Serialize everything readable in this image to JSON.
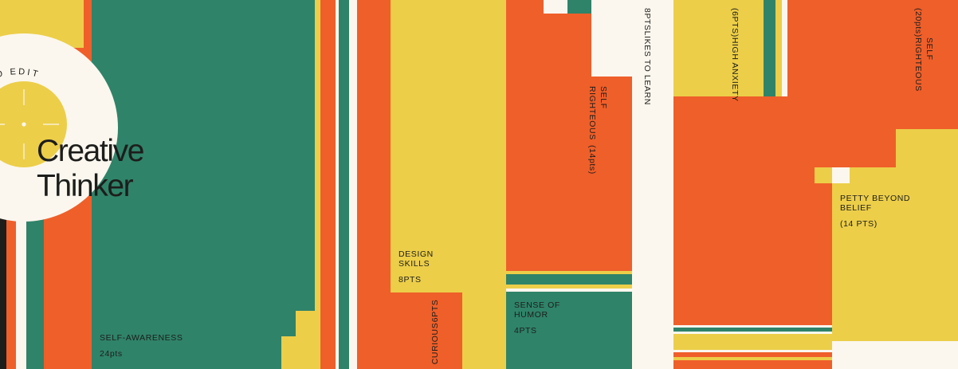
{
  "card": {
    "title_line1": "Creative",
    "title_line2": "Thinker",
    "dial_text": "TO EDIT"
  },
  "traits": [
    {
      "name": "SELF-AWARENESS",
      "points": "24pts"
    },
    {
      "name": "DESIGN SKILLS",
      "points": "8PTS"
    },
    {
      "name": "CURIOUS",
      "points": "6PTS"
    },
    {
      "name": "SENSE OF HUMOR",
      "points": "4PTS"
    },
    {
      "name": "SELF RIGHTEOUS",
      "points": "(14pts)"
    },
    {
      "name": "LIKES TO LEARN",
      "points": "8PTS"
    },
    {
      "name": "HIGH ANXIETY",
      "points": "(6PTS)"
    },
    {
      "name": "SELF RIGHTEOUS",
      "points": "(20pts)"
    },
    {
      "name": "PETTY BEYOND BELIEF",
      "points": "(14 PTS)"
    }
  ],
  "palette": {
    "green": "#2f8369",
    "orange": "#ef5f2a",
    "yellow": "#ecce49",
    "cream": "#fbf7ee",
    "ink": "#1d1d1b"
  }
}
